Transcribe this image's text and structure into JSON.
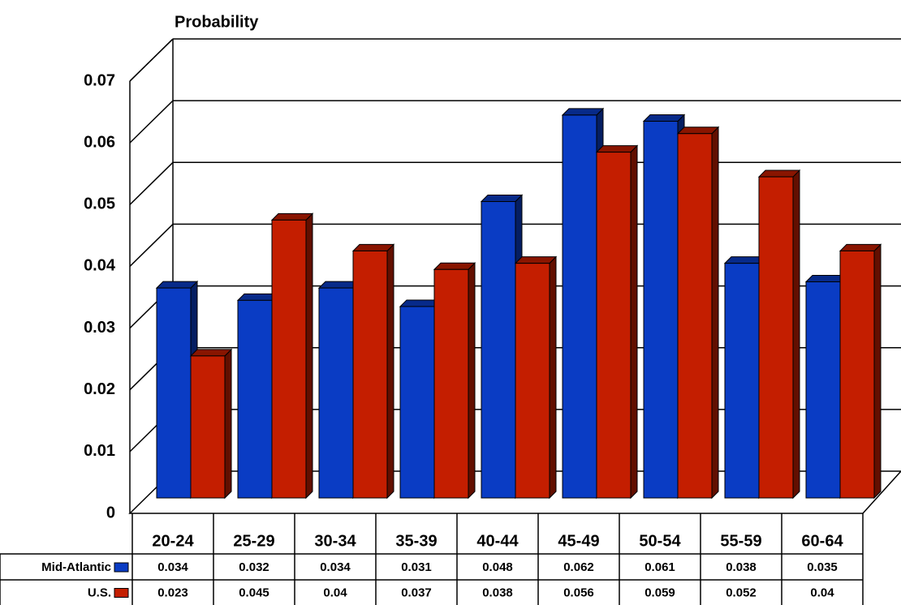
{
  "chart_data": {
    "type": "bar",
    "title": "Probability",
    "categories": [
      "20-24",
      "25-29",
      "30-34",
      "35-39",
      "40-44",
      "45-49",
      "50-54",
      "55-59",
      "60-64"
    ],
    "series": [
      {
        "name": "Mid-Atlantic",
        "color": "#0a3cc4",
        "values": [
          0.034,
          0.032,
          0.034,
          0.031,
          0.048,
          0.062,
          0.061,
          0.038,
          0.035
        ]
      },
      {
        "name": "U.S.",
        "color": "#c41e00",
        "values": [
          0.023,
          0.045,
          0.04,
          0.037,
          0.038,
          0.056,
          0.059,
          0.052,
          0.04
        ]
      }
    ],
    "ylim": [
      0,
      0.07
    ],
    "yticks": [
      0,
      0.01,
      0.02,
      0.03,
      0.04,
      0.05,
      0.06,
      0.07
    ],
    "grid": true
  }
}
